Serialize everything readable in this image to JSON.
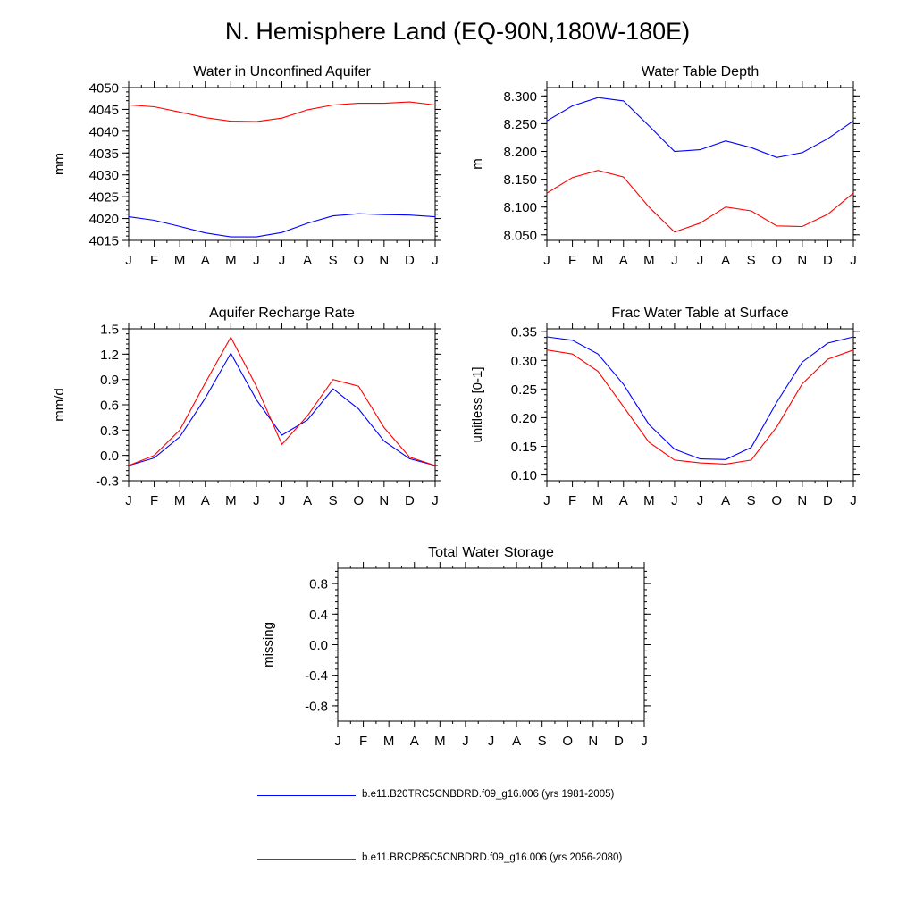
{
  "title": "N. Hemisphere Land (EQ-90N,180W-180E)",
  "colors": {
    "series1": "#0000ff",
    "series2": "#ff0000"
  },
  "legend": [
    {
      "label": "b.e11.B20TRC5CNBDRD.f09_g16.006 (yrs 1981-2005)",
      "color": "#0000ff"
    },
    {
      "label": "b.e11.BRCP85C5CNBDRD.f09_g16.006 (yrs 2056-2080)",
      "color": "#ff0000"
    }
  ],
  "chart_data": [
    {
      "type": "line",
      "title": "Water in Unconfined Aquifer",
      "ylabel": "mm",
      "categories": [
        "J",
        "F",
        "M",
        "A",
        "M",
        "J",
        "J",
        "A",
        "S",
        "O",
        "N",
        "D",
        "J"
      ],
      "ylim": [
        4015,
        4050
      ],
      "yticks": [
        "4015",
        "4020",
        "4025",
        "4030",
        "4035",
        "4040",
        "4045",
        "4050"
      ],
      "series": [
        {
          "color": "#0000ff",
          "values": [
            4020.4,
            4019.6,
            4018.2,
            4016.7,
            4015.8,
            4015.8,
            4016.8,
            4018.9,
            4020.6,
            4021.1,
            4020.9,
            4020.8,
            4020.4
          ]
        },
        {
          "color": "#ff0000",
          "values": [
            4046.0,
            4045.6,
            4044.4,
            4043.1,
            4042.3,
            4042.2,
            4043.0,
            4044.9,
            4046.0,
            4046.4,
            4046.4,
            4046.7,
            4046.0
          ]
        }
      ]
    },
    {
      "type": "line",
      "title": "Water Table Depth",
      "ylabel": "m",
      "categories": [
        "J",
        "F",
        "M",
        "A",
        "M",
        "J",
        "J",
        "A",
        "S",
        "O",
        "N",
        "D",
        "J"
      ],
      "ylim": [
        8.04,
        8.315
      ],
      "yticks": [
        "8.050",
        "8.100",
        "8.150",
        "8.200",
        "8.250",
        "8.300"
      ],
      "series": [
        {
          "color": "#0000ff",
          "values": [
            8.255,
            8.282,
            8.297,
            8.291,
            8.246,
            8.2,
            8.203,
            8.219,
            8.207,
            8.189,
            8.198,
            8.223,
            8.255
          ]
        },
        {
          "color": "#ff0000",
          "values": [
            8.125,
            8.153,
            8.166,
            8.154,
            8.1,
            8.055,
            8.071,
            8.1,
            8.093,
            8.066,
            8.065,
            8.087,
            8.125
          ]
        }
      ]
    },
    {
      "type": "line",
      "title": "Aquifer Recharge Rate",
      "ylabel": "mm/d",
      "categories": [
        "J",
        "F",
        "M",
        "A",
        "M",
        "J",
        "J",
        "A",
        "S",
        "O",
        "N",
        "D",
        "J"
      ],
      "ylim": [
        -0.3,
        1.5
      ],
      "yticks": [
        "-0.3",
        "0.0",
        "0.3",
        "0.6",
        "0.9",
        "1.2",
        "1.5"
      ],
      "series": [
        {
          "color": "#0000ff",
          "values": [
            -0.12,
            -0.03,
            0.22,
            0.68,
            1.21,
            0.66,
            0.24,
            0.42,
            0.79,
            0.55,
            0.17,
            -0.04,
            -0.12
          ]
        },
        {
          "color": "#ff0000",
          "values": [
            -0.12,
            0.0,
            0.3,
            0.86,
            1.4,
            0.82,
            0.13,
            0.47,
            0.9,
            0.82,
            0.33,
            -0.02,
            -0.12
          ]
        }
      ]
    },
    {
      "type": "line",
      "title": "Frac Water Table at Surface",
      "ylabel": "unitless [0-1]",
      "categories": [
        "J",
        "F",
        "M",
        "A",
        "M",
        "J",
        "J",
        "A",
        "S",
        "O",
        "N",
        "D",
        "J"
      ],
      "ylim": [
        0.09,
        0.355
      ],
      "yticks": [
        "0.10",
        "0.15",
        "0.20",
        "0.25",
        "0.30",
        "0.35"
      ],
      "series": [
        {
          "color": "#0000ff",
          "values": [
            0.341,
            0.335,
            0.311,
            0.258,
            0.188,
            0.145,
            0.128,
            0.127,
            0.148,
            0.227,
            0.297,
            0.33,
            0.341
          ]
        },
        {
          "color": "#ff0000",
          "values": [
            0.318,
            0.311,
            0.281,
            0.219,
            0.157,
            0.126,
            0.121,
            0.119,
            0.126,
            0.184,
            0.259,
            0.302,
            0.318
          ]
        }
      ]
    },
    {
      "type": "line",
      "title": "Total Water Storage",
      "ylabel": "missing",
      "categories": [
        "J",
        "F",
        "M",
        "A",
        "M",
        "J",
        "J",
        "A",
        "S",
        "O",
        "N",
        "D",
        "J"
      ],
      "ylim": [
        -1.0,
        1.0
      ],
      "yticks": [
        "-0.8",
        "-0.4",
        "0.0",
        "0.4",
        "0.8"
      ],
      "series": []
    }
  ]
}
